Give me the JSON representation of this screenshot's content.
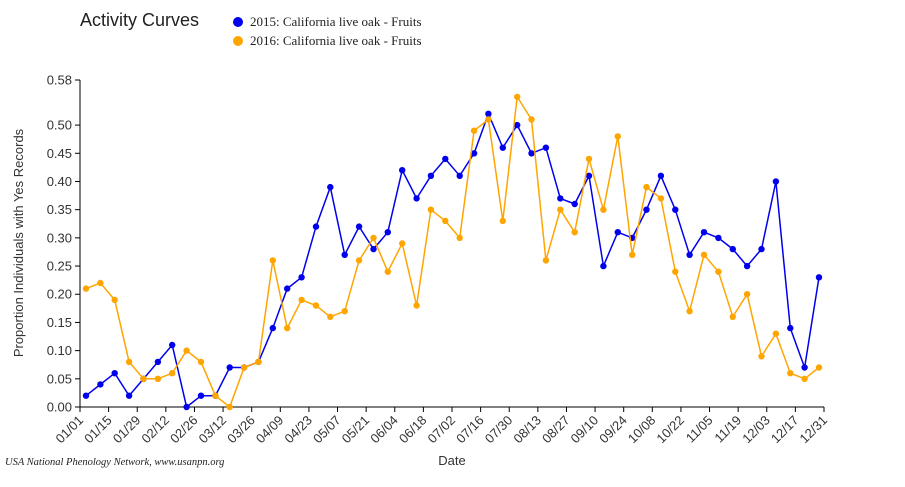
{
  "chart_data": {
    "type": "line",
    "title": "Activity Curves",
    "xlabel": "Date",
    "ylabel": "Proportion Individuals with Yes Records",
    "ylim": [
      0,
      0.58
    ],
    "yticks": [
      "0.00",
      "0.05",
      "0.10",
      "0.15",
      "0.20",
      "0.25",
      "0.30",
      "0.35",
      "0.40",
      "0.45",
      "0.50",
      "0.58"
    ],
    "ytick_values": [
      0,
      0.05,
      0.1,
      0.15,
      0.2,
      0.25,
      0.3,
      0.35,
      0.4,
      0.45,
      0.5,
      0.58
    ],
    "xticks": [
      "01/01",
      "01/15",
      "01/29",
      "02/12",
      "02/26",
      "03/12",
      "03/26",
      "04/09",
      "04/23",
      "05/07",
      "05/21",
      "06/04",
      "06/18",
      "07/02",
      "07/16",
      "07/30",
      "08/13",
      "08/27",
      "09/10",
      "09/24",
      "10/08",
      "10/22",
      "11/05",
      "11/19",
      "12/03",
      "12/17",
      "12/31"
    ],
    "grid": false,
    "legend_position": "top",
    "series": [
      {
        "name": "2015: California live oak - Fruits",
        "color": "#0000ee",
        "values": [
          0.02,
          0.04,
          0.06,
          0.02,
          0.05,
          0.08,
          0.11,
          0.0,
          0.02,
          0.02,
          0.07,
          0.07,
          0.08,
          0.14,
          0.21,
          0.23,
          0.32,
          0.39,
          0.27,
          0.32,
          0.28,
          0.31,
          0.42,
          0.37,
          0.41,
          0.44,
          0.41,
          0.45,
          0.52,
          0.46,
          0.5,
          0.45,
          0.46,
          0.37,
          0.36,
          0.41,
          0.25,
          0.31,
          0.3,
          0.35,
          0.41,
          0.35,
          0.27,
          0.31,
          0.3,
          0.28,
          0.25,
          0.28,
          0.4,
          0.14,
          0.07,
          0.23
        ]
      },
      {
        "name": "2016: California live oak - Fruits",
        "color": "#ffa500",
        "values": [
          0.21,
          0.22,
          0.19,
          0.08,
          0.05,
          0.05,
          0.06,
          0.1,
          0.08,
          0.02,
          0.0,
          0.07,
          0.08,
          0.26,
          0.14,
          0.19,
          0.18,
          0.16,
          0.17,
          0.26,
          0.3,
          0.24,
          0.29,
          0.18,
          0.35,
          0.33,
          0.3,
          0.49,
          0.51,
          0.33,
          0.55,
          0.51,
          0.26,
          0.35,
          0.31,
          0.44,
          0.35,
          0.48,
          0.27,
          0.39,
          0.37,
          0.24,
          0.17,
          0.27,
          0.24,
          0.16,
          0.2,
          0.09,
          0.13,
          0.06,
          0.05,
          0.07
        ]
      }
    ]
  },
  "credit": "USA National Phenology Network, www.usanpn.org"
}
